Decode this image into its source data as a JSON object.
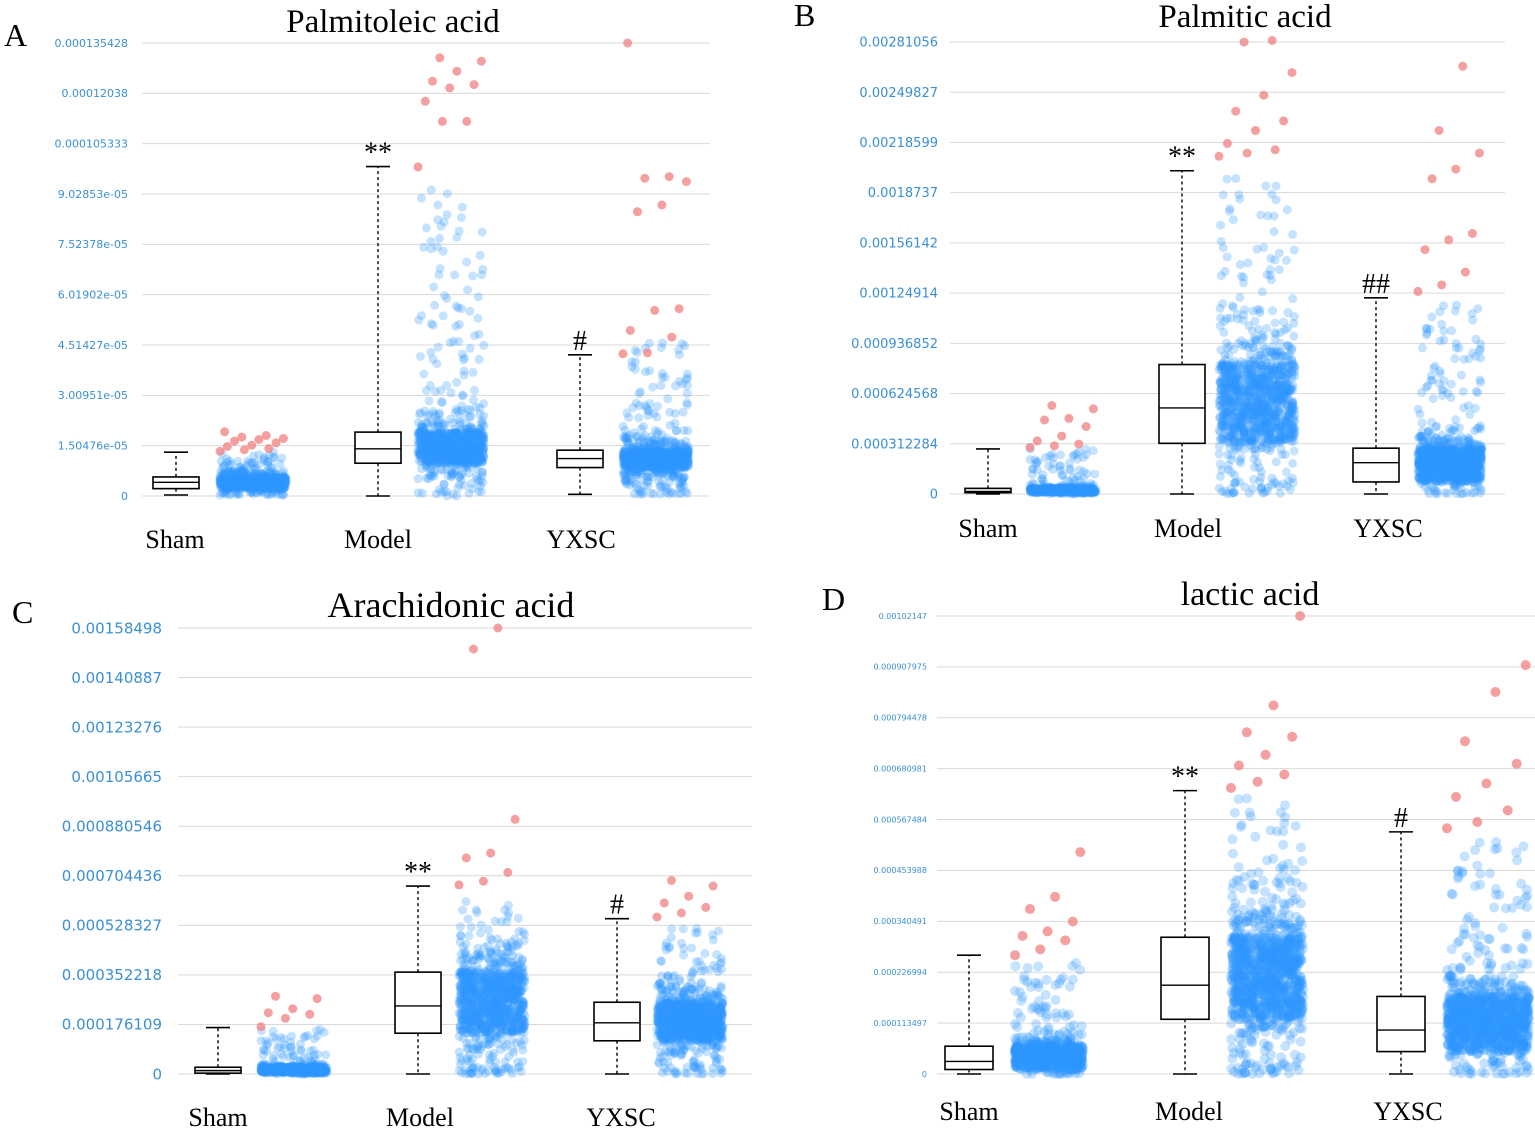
{
  "figure": {
    "description": "Four jittered box plots of metabolite levels across groups"
  },
  "chart_data": [
    {
      "panel": "A",
      "type": "box",
      "title": "Palmitoleic  acid",
      "categories": [
        "Sham",
        "Model",
        "YXSC"
      ],
      "yticks": [
        "0",
        "1.50476e-05",
        "3.00951e-05",
        "4.51427e-05",
        "6.01902e-05",
        "7.52378e-05",
        "9.02853e-05",
        "0.000105333",
        "0.00012038",
        "0.000135428"
      ],
      "ylim": [
        0,
        0.000135428
      ],
      "groups": [
        {
          "name": "Sham",
          "whisker_low": 3e-07,
          "q1": 2.2e-06,
          "median": 4.1e-06,
          "q3": 5.7e-06,
          "whisker_high": 1.31e-05,
          "max_points": 1.32e-05,
          "outliers": [
            1.34e-05,
            1.38e-05,
            1.42e-05,
            1.48e-05,
            1.52e-05,
            1.59e-05,
            1.64e-05,
            1.69e-05,
            1.72e-05,
            1.76e-05,
            1.81e-05,
            1.92e-05
          ],
          "significance": ""
        },
        {
          "name": "Model",
          "whisker_low": 0.0,
          "q1": 9.8e-06,
          "median": 1.41e-05,
          "q3": 1.91e-05,
          "whisker_high": 9.85e-05,
          "max_points": 9.2e-05,
          "outliers": [
            9.84e-05,
            0.000112,
            0.000112,
            0.000118,
            0.000122,
            0.000123,
            0.000124,
            0.000127,
            0.00013,
            0.000131
          ],
          "significance": "**"
        },
        {
          "name": "YXSC",
          "whisker_low": 5e-07,
          "q1": 8.5e-06,
          "median": 1.12e-05,
          "q3": 1.37e-05,
          "whisker_high": 4.22e-05,
          "max_points": 4.6e-05,
          "outliers": [
            4.25e-05,
            4.28e-05,
            4.75e-05,
            4.95e-05,
            5.55e-05,
            5.6e-05,
            8.5e-05,
            8.7e-05,
            9.4e-05,
            9.5e-05,
            9.55e-05,
            0.000135428
          ],
          "significance": "#"
        }
      ]
    },
    {
      "panel": "B",
      "type": "box",
      "title": "Palmitic acid",
      "categories": [
        "Sham",
        "Model",
        "YXSC"
      ],
      "yticks": [
        "0",
        "0.000312284",
        "0.000624568",
        "0.000936852",
        "0.00124914",
        "0.00156142",
        "0.0018737",
        "0.00218599",
        "0.00249827",
        "0.00281056"
      ],
      "ylim": [
        0,
        0.00281056
      ],
      "groups": [
        {
          "name": "Sham",
          "whisker_low": 0.0,
          "q1": 8e-06,
          "median": 1.6e-05,
          "q3": 3.5e-05,
          "whisker_high": 0.00028,
          "max_points": 0.00029,
          "outliers": [
            0.00029,
            0.0003,
            0.00031,
            0.00033,
            0.00036,
            0.00042,
            0.00046,
            0.00047,
            0.00053,
            0.00055
          ],
          "significance": ""
        },
        {
          "name": "Model",
          "whisker_low": 0.0,
          "q1": 0.000315,
          "median": 0.000535,
          "q3": 0.000805,
          "whisker_high": 0.00201,
          "max_points": 0.00198,
          "outliers": [
            0.0021,
            0.00212,
            0.00214,
            0.00218,
            0.00226,
            0.00232,
            0.00238,
            0.00248,
            0.00262,
            0.00281,
            0.00282
          ],
          "significance": "**"
        },
        {
          "name": "YXSC",
          "whisker_low": 0.0,
          "q1": 7.5e-05,
          "median": 0.000195,
          "q3": 0.000285,
          "whisker_high": 0.00122,
          "max_points": 0.00118,
          "outliers": [
            0.00126,
            0.0013,
            0.00138,
            0.00152,
            0.00158,
            0.00162,
            0.00196,
            0.00202,
            0.00212,
            0.00226,
            0.00266
          ],
          "significance": "##"
        }
      ]
    },
    {
      "panel": "C",
      "type": "box",
      "title": "Arachidonic acid",
      "categories": [
        "Sham",
        "Model",
        "YXSC"
      ],
      "yticks": [
        "0",
        "0.000176109",
        "0.000352218",
        "0.000528327",
        "0.000704436",
        "0.000880546",
        "0.00105665",
        "0.00123276",
        "0.00140887",
        "0.00158498"
      ],
      "ylim": [
        0,
        0.00158498
      ],
      "groups": [
        {
          "name": "Sham",
          "whisker_low": 0.0,
          "q1": 3e-06,
          "median": 1.2e-05,
          "q3": 2.4e-05,
          "whisker_high": 0.000165,
          "max_points": 0.00016,
          "outliers": [
            0.000168,
            0.000198,
            0.000212,
            0.000218,
            0.000232,
            0.000268,
            0.000276
          ],
          "significance": ""
        },
        {
          "name": "Model",
          "whisker_low": 0.0,
          "q1": 0.000145,
          "median": 0.000242,
          "q3": 0.000362,
          "whisker_high": 0.000668,
          "max_points": 0.00062,
          "outliers": [
            0.000672,
            0.000685,
            0.000716,
            0.000768,
            0.000785,
            0.000905,
            0.00151,
            0.00158498
          ],
          "significance": "**"
        },
        {
          "name": "YXSC",
          "whisker_low": 0.0,
          "q1": 0.000118,
          "median": 0.000182,
          "q3": 0.000255,
          "whisker_high": 0.000552,
          "max_points": 0.00052,
          "outliers": [
            0.000558,
            0.000572,
            0.000592,
            0.000608,
            0.000632,
            0.000668,
            0.000688
          ],
          "significance": "#"
        }
      ]
    },
    {
      "panel": "D",
      "type": "box",
      "title": "lactic acid",
      "categories": [
        "Sham",
        "Model",
        "YXSC"
      ],
      "yticks": [
        "0",
        "0.000113497",
        "0.000226994",
        "0.000340491",
        "0.000453988",
        "0.000567484",
        "0.000680981",
        "0.000794478",
        "0.000907975",
        "0.00102147"
      ],
      "ylim": [
        0,
        0.00102147
      ],
      "groups": [
        {
          "name": "Sham",
          "whisker_low": 0.0,
          "q1": 1e-05,
          "median": 2.8e-05,
          "q3": 6.2e-05,
          "whisker_high": 0.000265,
          "max_points": 0.00025,
          "outliers": [
            0.000265,
            0.000278,
            0.000298,
            0.000308,
            0.000318,
            0.00034,
            0.000368,
            0.000395,
            0.000495
          ],
          "significance": ""
        },
        {
          "name": "Model",
          "whisker_low": 0.0,
          "q1": 0.000122,
          "median": 0.000198,
          "q3": 0.000305,
          "whisker_high": 0.000632,
          "max_points": 0.00062,
          "outliers": [
            0.000638,
            0.000652,
            0.000668,
            0.000688,
            0.000712,
            0.000752,
            0.000762,
            0.000822,
            0.00102147
          ],
          "significance": "**"
        },
        {
          "name": "YXSC",
          "whisker_low": 0.0,
          "q1": 5e-05,
          "median": 9.8e-05,
          "q3": 0.000173,
          "whisker_high": 0.00054,
          "max_points": 0.00052,
          "outliers": [
            0.000548,
            0.000562,
            0.000588,
            0.000618,
            0.000648,
            0.000692,
            0.000742,
            0.000852,
            0.000912
          ],
          "significance": "#"
        }
      ]
    }
  ]
}
